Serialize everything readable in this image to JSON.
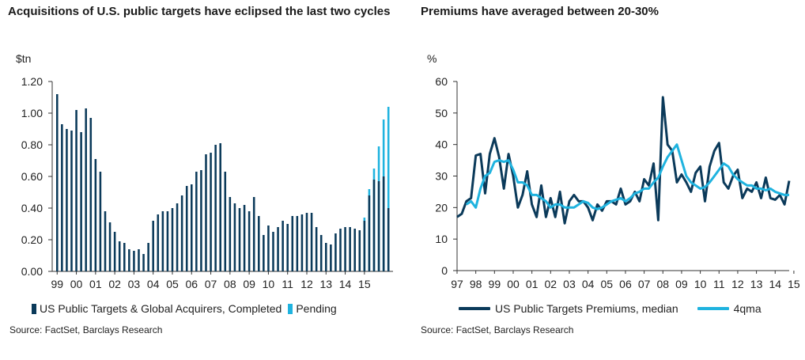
{
  "left": {
    "title": "Acquisitions of U.S. public targets have eclipsed the last two cycles",
    "unit": "$tn",
    "source": "Source: FactSet, Barclays Research",
    "legend": {
      "completed": "US Public Targets & Global Acquirers, Completed",
      "pending": "Pending"
    },
    "colors": {
      "completed": "#0b3a5a",
      "pending": "#1fb3df",
      "axis": "#333333"
    }
  },
  "right": {
    "title": "Premiums have averaged between 20-30%",
    "unit": "%",
    "source": "Source: FactSet, Barclays Research",
    "legend": {
      "median": "US Public Targets Premiums, median",
      "qma": "4qma"
    },
    "colors": {
      "median": "#0b3a5a",
      "qma": "#1fb3df",
      "axis": "#333333"
    }
  },
  "chart_data": [
    {
      "type": "bar",
      "title": "Acquisitions of U.S. public targets have eclipsed the last two cycles",
      "ylabel": "$tn",
      "ylim": [
        0,
        1.2
      ],
      "yticks": [
        "0.00",
        "0.20",
        "0.40",
        "0.60",
        "0.80",
        "1.00",
        "1.20"
      ],
      "xticks": [
        "99",
        "00",
        "01",
        "02",
        "03",
        "04",
        "05",
        "06",
        "07",
        "08",
        "09",
        "10",
        "11",
        "12",
        "13",
        "14",
        "15"
      ],
      "series": [
        {
          "name": "US Public Targets & Global Acquirers, Completed",
          "values": [
            1.12,
            0.93,
            0.9,
            0.89,
            1.02,
            0.88,
            1.03,
            0.97,
            0.71,
            0.63,
            0.38,
            0.31,
            0.25,
            0.19,
            0.18,
            0.14,
            0.13,
            0.14,
            0.11,
            0.18,
            0.32,
            0.36,
            0.38,
            0.38,
            0.4,
            0.43,
            0.48,
            0.54,
            0.55,
            0.63,
            0.64,
            0.74,
            0.75,
            0.8,
            0.81,
            0.63,
            0.47,
            0.43,
            0.4,
            0.42,
            0.38,
            0.47,
            0.35,
            0.23,
            0.29,
            0.25,
            0.28,
            0.32,
            0.3,
            0.35,
            0.35,
            0.36,
            0.37,
            0.37,
            0.28,
            0.23,
            0.18,
            0.17,
            0.24,
            0.27,
            0.28,
            0.28,
            0.27,
            0.26,
            0.32,
            0.48,
            0.58,
            0.57,
            0.6,
            0.4
          ]
        },
        {
          "name": "Pending",
          "values": [
            0,
            0,
            0,
            0,
            0,
            0,
            0,
            0,
            0,
            0,
            0,
            0,
            0,
            0,
            0,
            0,
            0,
            0,
            0,
            0,
            0,
            0,
            0,
            0,
            0,
            0,
            0,
            0,
            0,
            0,
            0,
            0,
            0,
            0,
            0,
            0,
            0,
            0,
            0,
            0,
            0,
            0,
            0,
            0,
            0,
            0,
            0,
            0,
            0,
            0,
            0,
            0,
            0,
            0,
            0,
            0,
            0,
            0,
            0,
            0,
            0,
            0,
            0,
            0,
            0.34,
            0.52,
            0.65,
            0.79,
            0.96,
            1.04
          ]
        }
      ]
    },
    {
      "type": "line",
      "title": "Premiums have averaged between 20-30%",
      "ylabel": "%",
      "ylim": [
        0,
        60
      ],
      "yticks": [
        "0",
        "10",
        "20",
        "30",
        "40",
        "50",
        "60"
      ],
      "xticks": [
        "97",
        "98",
        "99",
        "00",
        "01",
        "02",
        "03",
        "04",
        "05",
        "06",
        "07",
        "08",
        "09",
        "10",
        "11",
        "12",
        "13",
        "14",
        "15"
      ],
      "series": [
        {
          "name": "US Public Targets Premiums, median",
          "values": [
            17,
            18,
            22,
            23,
            36.5,
            37,
            24.5,
            37,
            42,
            36,
            26,
            37,
            30,
            20,
            24,
            31.5,
            21,
            17,
            27,
            17,
            23,
            17,
            25,
            15,
            22,
            24,
            22,
            22,
            20,
            16,
            21,
            19,
            22,
            22,
            21,
            26,
            21,
            22,
            25,
            22,
            29,
            27,
            34,
            16,
            55,
            40,
            38,
            28,
            30.5,
            28,
            25,
            31,
            33,
            22,
            33,
            38,
            40.5,
            28,
            26,
            30,
            32,
            23,
            26,
            25,
            28,
            23,
            29.5,
            23,
            22.5,
            24,
            21,
            28.5
          ]
        },
        {
          "name": "4qma",
          "values": [
            null,
            null,
            21,
            22,
            20,
            26,
            30,
            31,
            34.5,
            35,
            34.5,
            35,
            32,
            28,
            28,
            27,
            24,
            24,
            23,
            22,
            20,
            21,
            21,
            20,
            20,
            20,
            21,
            22,
            21.5,
            20,
            19.5,
            20,
            21,
            22,
            22.5,
            23,
            22,
            23,
            24.5,
            25,
            26,
            26,
            28,
            29.5,
            33,
            36,
            38,
            40,
            35,
            30,
            28,
            27,
            26,
            26.5,
            28,
            30,
            32,
            34,
            33,
            30.5,
            29,
            28,
            27,
            27,
            26,
            26,
            25.5,
            26,
            25,
            24.5,
            24,
            24
          ]
        }
      ]
    }
  ]
}
